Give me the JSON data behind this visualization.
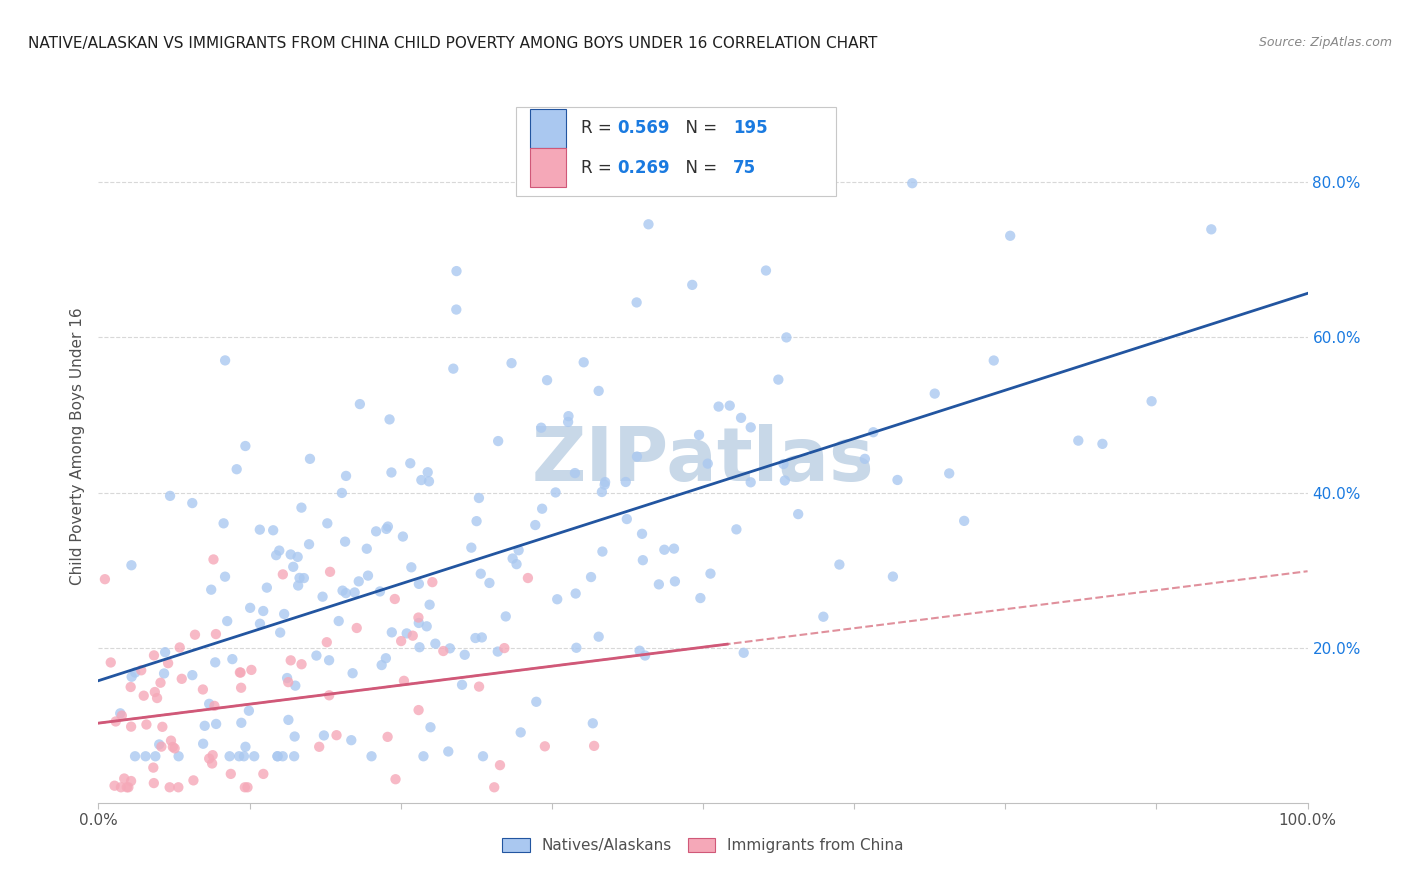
{
  "title": "NATIVE/ALASKAN VS IMMIGRANTS FROM CHINA CHILD POVERTY AMONG BOYS UNDER 16 CORRELATION CHART",
  "source": "Source: ZipAtlas.com",
  "ylabel": "Child Poverty Among Boys Under 16",
  "legend_label_1": "Natives/Alaskans",
  "legend_label_2": "Immigrants from China",
  "R1": "0.569",
  "N1": "195",
  "R2": "0.269",
  "N2": "75",
  "scatter_color_1": "#aac8f0",
  "scatter_color_2": "#f5a8b8",
  "line_color_1": "#2255a0",
  "line_color_2": "#d05878",
  "line_color_2_dashed": "#e0909c",
  "watermark_color": "#c8d8e8",
  "background_color": "#ffffff",
  "grid_color": "#d8d8d8",
  "title_color": "#202020",
  "axis_label_color": "#505050",
  "tick_color_right": "#1a7ae0",
  "y_tick_labels": [
    "20.0%",
    "40.0%",
    "60.0%",
    "80.0%"
  ],
  "y_tick_positions": [
    0.2,
    0.4,
    0.6,
    0.8
  ],
  "xlim": [
    0.0,
    1.0
  ],
  "ylim": [
    0.0,
    0.92
  ],
  "seed_1": 42,
  "seed_2": 99,
  "n1": 195,
  "n2": 75
}
